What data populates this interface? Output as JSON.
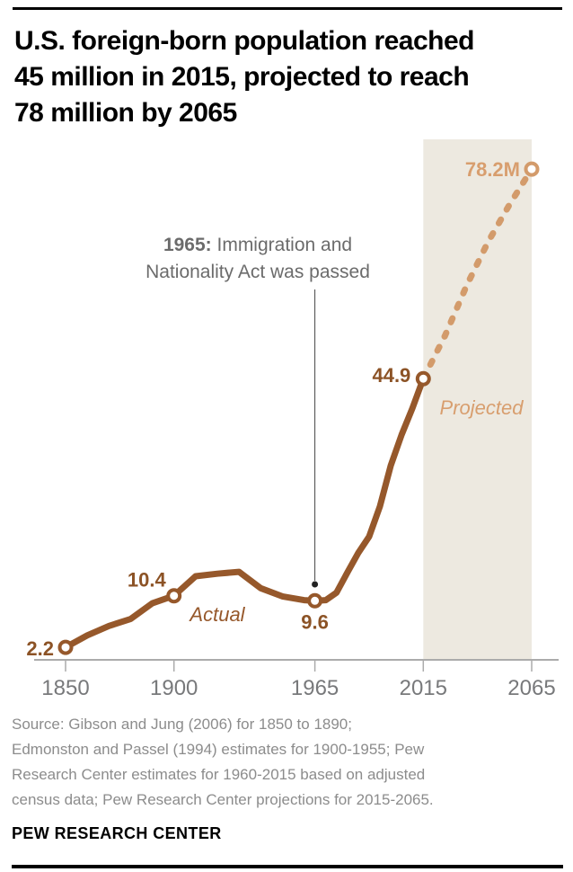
{
  "colors": {
    "line-actual": "#96582B",
    "line-projected": "#D39B6B",
    "label-actual": "#8C5326",
    "label-projected": "#D89E6E",
    "region-bg": "#EDE9E0",
    "axis": "#ABABAB",
    "tick-label": "#78797B",
    "annotation-text": "#6B6B6B",
    "annotation-line": "#454545",
    "annotation-dot": "#222222",
    "title-text": "#000000",
    "source-text": "#8C8C8C",
    "rule": "#000000"
  },
  "header": {
    "title_lines": [
      "U.S. foreign-born population reached",
      "45 million in 2015, projected to reach",
      "78 million by 2065"
    ]
  },
  "chart_data": {
    "type": "line",
    "title": "U.S. foreign-born population reached 45 million in 2015, projected to reach 78 million by 2065",
    "unit": "millions of people",
    "xlabel": "",
    "ylabel": "",
    "x_axis": {
      "ticks": [
        1850,
        1900,
        1965,
        2015,
        2065
      ],
      "range": [
        1850,
        2065
      ]
    },
    "y_axis": {
      "range": [
        0,
        83
      ],
      "shown": false
    },
    "grid": false,
    "legend_position": "inline-region-labels",
    "series": [
      {
        "name": "Actual",
        "style": "solid",
        "points": [
          [
            1850,
            2.2
          ],
          [
            1860,
            4.1
          ],
          [
            1870,
            5.6
          ],
          [
            1880,
            6.7
          ],
          [
            1890,
            9.2
          ],
          [
            1900,
            10.4
          ],
          [
            1910,
            13.5
          ],
          [
            1920,
            13.9
          ],
          [
            1930,
            14.2
          ],
          [
            1940,
            11.6
          ],
          [
            1950,
            10.3
          ],
          [
            1960,
            9.7
          ],
          [
            1965,
            9.6
          ],
          [
            1970,
            9.7
          ],
          [
            1975,
            10.9
          ],
          [
            1980,
            14.1
          ],
          [
            1985,
            17.2
          ],
          [
            1990,
            19.8
          ],
          [
            1995,
            24.6
          ],
          [
            2000,
            31.1
          ],
          [
            2005,
            36.0
          ],
          [
            2010,
            40.2
          ],
          [
            2015,
            44.9
          ]
        ]
      },
      {
        "name": "Projected",
        "style": "dotted",
        "points": [
          [
            2015,
            44.9
          ],
          [
            2025,
            51.7
          ],
          [
            2035,
            59.7
          ],
          [
            2045,
            66.7
          ],
          [
            2055,
            72.7
          ],
          [
            2065,
            78.2
          ]
        ]
      }
    ],
    "labeled_points": [
      {
        "year": 1850,
        "value": 2.2,
        "label": "2.2",
        "series": "Actual"
      },
      {
        "year": 1900,
        "value": 10.4,
        "label": "10.4",
        "series": "Actual"
      },
      {
        "year": 1965,
        "value": 9.6,
        "label": "9.6",
        "series": "Actual"
      },
      {
        "year": 2015,
        "value": 44.9,
        "label": "44.9",
        "series": "Actual"
      },
      {
        "year": 2065,
        "value": 78.2,
        "label": "78.2M",
        "series": "Projected"
      }
    ],
    "annotation": {
      "attached_year": 1965,
      "line1_bold": "1965:",
      "line1_rest": " Immigration and",
      "line2": "Nationality Act was passed"
    },
    "projected_region": {
      "from": 2015,
      "to": 2065
    }
  },
  "footer": {
    "source_lines": [
      "Source: Gibson and Jung (2006) for 1850 to 1890;",
      "Edmonston and Passel (1994) estimates for 1900-1955; Pew",
      "Research Center estimates for 1960-2015 based on adjusted",
      "census data; Pew Research Center projections for 2015-2065."
    ],
    "brand": "PEW RESEARCH CENTER"
  }
}
